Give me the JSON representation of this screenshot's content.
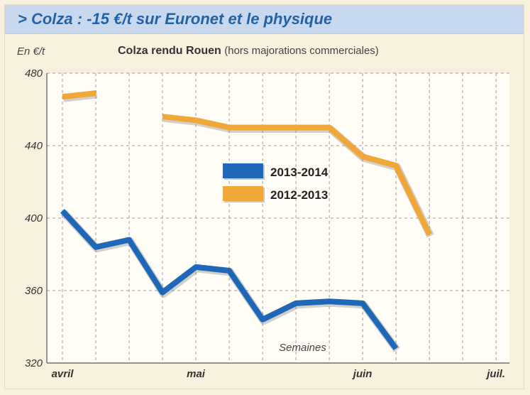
{
  "header": {
    "title": "> Colza : -15 €/t sur Euronet et le physique"
  },
  "unit_label": "En €/t",
  "subtitle": {
    "main": "Colza rendu Rouen",
    "note": "(hors majorations commerciales)"
  },
  "chart_data": {
    "type": "line",
    "title": "Colza rendu Rouen (hors majorations commerciales)",
    "ylabel": "En €/t",
    "xlabel": "Semaines",
    "ylim": [
      320,
      480
    ],
    "yticks": [
      320,
      360,
      400,
      440,
      480
    ],
    "x_ticks": [
      {
        "label": "avril",
        "week": 0
      },
      {
        "label": "mai",
        "week": 4
      },
      {
        "label": "juin",
        "week": 9
      },
      {
        "label": "juil.",
        "week": 13
      }
    ],
    "grid": true,
    "legend_position": "center",
    "series": [
      {
        "name": "2013-2014",
        "color": "#1f68b8",
        "points": [
          [
            0,
            404
          ],
          [
            1,
            384
          ],
          [
            2,
            388
          ],
          [
            3,
            359
          ],
          [
            4,
            373
          ],
          [
            5,
            371
          ],
          [
            6,
            344
          ],
          [
            7,
            353
          ],
          [
            8,
            354
          ],
          [
            9,
            353
          ],
          [
            10,
            328
          ]
        ]
      },
      {
        "name": "2012-2013",
        "color": "#f0a737",
        "segments": [
          [
            [
              0,
              467
            ],
            [
              1,
              469
            ]
          ],
          [
            [
              3,
              456
            ],
            [
              4,
              454
            ],
            [
              5,
              450
            ],
            [
              6,
              450
            ],
            [
              7,
              450
            ],
            [
              8,
              450
            ],
            [
              9,
              434
            ],
            [
              10,
              429
            ],
            [
              11,
              391
            ]
          ]
        ]
      }
    ]
  }
}
